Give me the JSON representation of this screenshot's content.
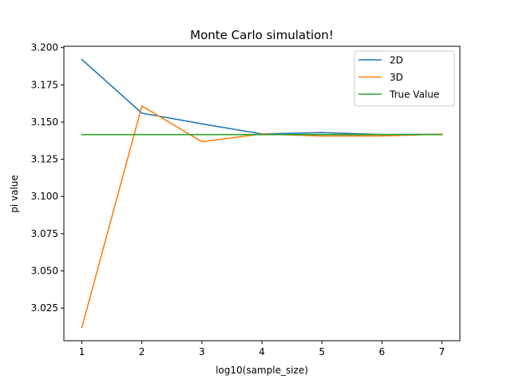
{
  "chart_data": {
    "type": "line",
    "title": "Monte Carlo simulation!",
    "xlabel": "log10(sample_size)",
    "ylabel": "pi value",
    "x": [
      1,
      2,
      3,
      4,
      5,
      6,
      7
    ],
    "x_ticks": [
      "1",
      "2",
      "3",
      "4",
      "5",
      "6",
      "7"
    ],
    "y_ticks": [
      "3.025",
      "3.050",
      "3.075",
      "3.100",
      "3.125",
      "3.150",
      "3.175",
      "3.200"
    ],
    "xlim": [
      0.7,
      7.3
    ],
    "ylim": [
      3.0031,
      3.2009
    ],
    "grid": false,
    "legend_position": "top-right",
    "series": [
      {
        "name": "2D",
        "color": "#1f77b4",
        "values": [
          3.192,
          3.156,
          3.1488,
          3.142,
          3.1429,
          3.1416,
          3.1417
        ]
      },
      {
        "name": "3D",
        "color": "#ff7f0e",
        "values": [
          3.012,
          3.1608,
          3.1368,
          3.142,
          3.1406,
          3.1407,
          3.1419
        ]
      },
      {
        "name": "True Value",
        "color": "#2ca02c",
        "values": [
          3.14159,
          3.14159,
          3.14159,
          3.14159,
          3.14159,
          3.14159,
          3.14159
        ]
      }
    ]
  }
}
